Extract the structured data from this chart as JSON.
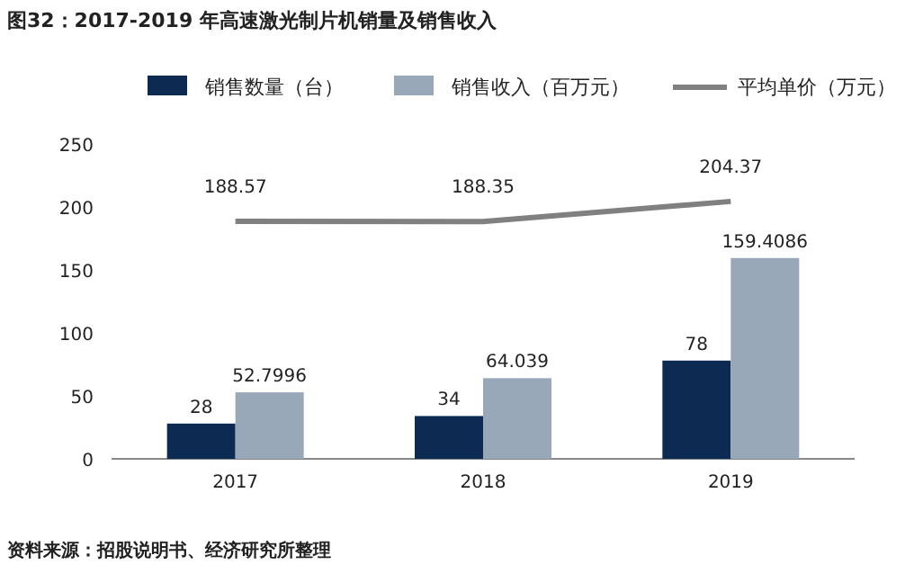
{
  "chart_data": {
    "type": "bar",
    "title": "图32：2017-2019 年高速激光制片机销量及销售收入",
    "categories": [
      "2017",
      "2018",
      "2019"
    ],
    "series": [
      {
        "name": "销售数量（台）",
        "color": "#0d2b52",
        "values": [
          28,
          34,
          78
        ]
      },
      {
        "name": "销售收入（百万元）",
        "color": "#98a8b9",
        "values": [
          52.7996,
          64.039,
          159.4086
        ]
      },
      {
        "name": "平均单价（万元）",
        "type": "line",
        "color": "#808080",
        "values": [
          188.57,
          188.35,
          204.37
        ]
      }
    ],
    "ylim": [
      0,
      250
    ],
    "yticks": [
      0,
      50,
      100,
      150,
      200,
      250
    ],
    "data_labels": true,
    "legend": "top",
    "annotations": [
      "资料来源：招股说明书、经济研究所整理"
    ]
  }
}
